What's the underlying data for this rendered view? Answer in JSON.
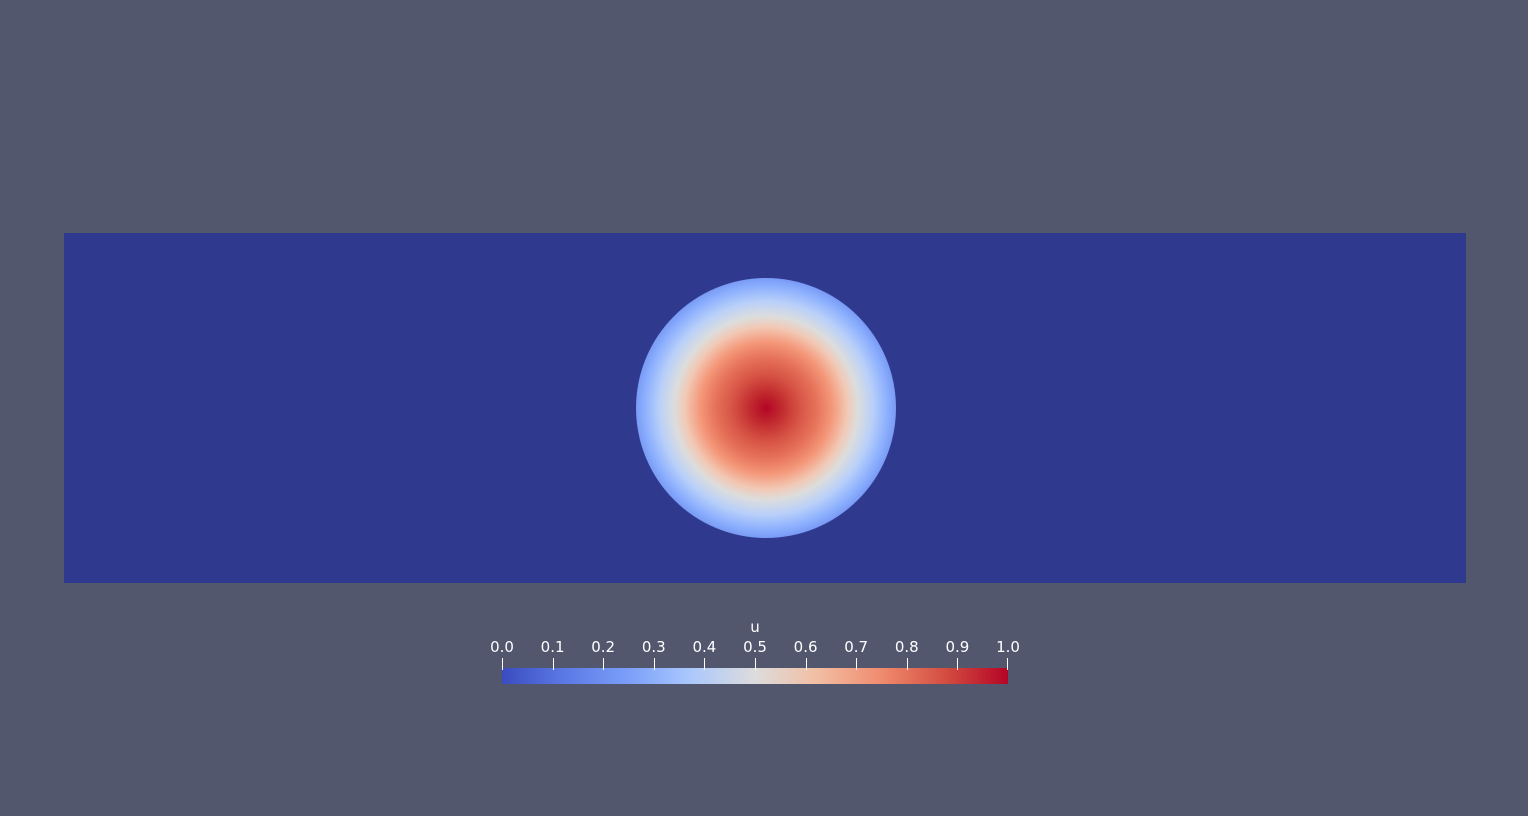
{
  "background_color": "#52576e",
  "field": {
    "low_color": "#2f3a8f",
    "high_color": "#b40426"
  },
  "colorbar": {
    "title": "u",
    "ticks": [
      "0.0",
      "0.1",
      "0.2",
      "0.3",
      "0.4",
      "0.5",
      "0.6",
      "0.7",
      "0.8",
      "0.9",
      "1.0"
    ],
    "range": [
      0.0,
      1.0
    ],
    "colormap": "cool-to-warm"
  }
}
